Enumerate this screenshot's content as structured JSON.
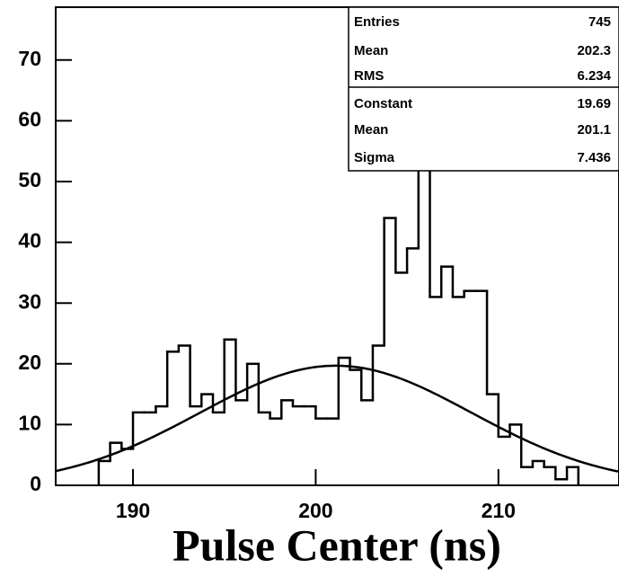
{
  "chart_data": {
    "type": "histogram",
    "x_label": "Pulse Center (ns)",
    "bins": [
      188.125,
      188.75,
      189.375,
      190,
      190.625,
      191.25,
      191.875,
      192.5,
      193.125,
      193.75,
      194.375,
      195,
      195.625,
      196.25,
      196.875,
      197.5,
      198.125,
      198.75,
      199.375,
      200,
      200.625,
      201.25,
      201.875,
      202.5,
      203.125,
      203.75,
      204.375,
      205,
      205.625,
      206.25,
      206.875,
      207.5,
      208.125,
      208.75,
      209.375,
      210,
      210.625,
      211.25,
      211.875,
      212.5,
      213.125,
      213.75,
      214.375
    ],
    "values": [
      4,
      7,
      6,
      12,
      12,
      13,
      22,
      23,
      13,
      15,
      12,
      24,
      14,
      20,
      12,
      11,
      14,
      13,
      13,
      11,
      11,
      21,
      19,
      14,
      23,
      44,
      35,
      39,
      59,
      31,
      36,
      31,
      32,
      32,
      15,
      8,
      10,
      3,
      4,
      3,
      1,
      3
    ],
    "color": "#000000",
    "xlim": [
      185.77,
      216.6
    ],
    "xticks": [
      190,
      200,
      210
    ],
    "ylim": [
      0,
      78.7
    ],
    "yticks": [
      0,
      10,
      20,
      30,
      40,
      50,
      60,
      70
    ],
    "stats": [
      {
        "label": "Entries",
        "value": 745
      },
      {
        "label": "Mean",
        "value": 202.3
      },
      {
        "label": "RMS",
        "value": 6.234
      },
      {
        "label": "Constant",
        "value": 19.69
      },
      {
        "label": "Mean",
        "value": 201.1
      },
      {
        "label": "Sigma",
        "value": 7.436
      }
    ]
  }
}
